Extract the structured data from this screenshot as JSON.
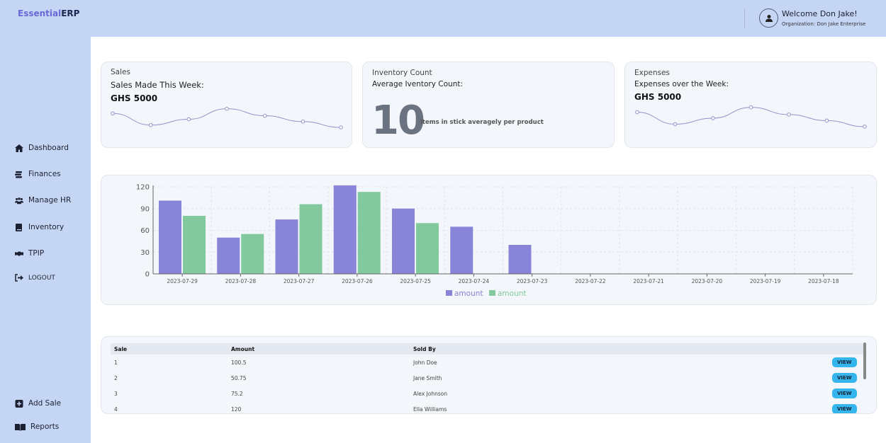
{
  "header": {
    "logo_a": "Essential",
    "logo_b": "ERP",
    "welcome": "Welcome Don Jake!",
    "organization": "Organization: Don Jake Enterprise"
  },
  "sidebar": {
    "items": [
      {
        "label": "Dashboard",
        "icon": "home-icon"
      },
      {
        "label": "Finances",
        "icon": "coins-icon"
      },
      {
        "label": "Manage HR",
        "icon": "users-icon"
      },
      {
        "label": "Inventory",
        "icon": "book-icon"
      },
      {
        "label": "TPIP",
        "icon": "handshake-icon"
      },
      {
        "label": "LOGOUT",
        "icon": "logout-icon"
      }
    ],
    "bottom": [
      {
        "label": "Add Sale",
        "icon": "plus-square-icon"
      },
      {
        "label": "Reports",
        "icon": "open-book-icon"
      }
    ]
  },
  "cards": {
    "sales": {
      "title": "Sales",
      "subtitle": "Sales Made This Week:",
      "value": "GHS 5000",
      "spark": [
        60,
        40,
        50,
        68,
        56,
        46,
        36
      ]
    },
    "inventory": {
      "title": "Inventory Count",
      "subtitle": "Average Iventory Count:",
      "value": "10",
      "label": "items in stick averagely per product"
    },
    "expenses": {
      "title": "Expenses",
      "subtitle": "Expenses over the Week:",
      "value": "GHS 5000",
      "spark": [
        60,
        40,
        50,
        68,
        56,
        46,
        36
      ]
    }
  },
  "chart_data": {
    "type": "bar",
    "categories": [
      "2023-07-29",
      "2023-07-28",
      "2023-07-27",
      "2023-07-26",
      "2023-07-25",
      "2023-07-24",
      "2023-07-23",
      "2023-07-22",
      "2023-07-21",
      "2023-07-20",
      "2023-07-19",
      "2023-07-18"
    ],
    "series": [
      {
        "name": "amount",
        "color": "#8884d8",
        "values": [
          101,
          50,
          75,
          122,
          90,
          65,
          40,
          0,
          0,
          0,
          0,
          0
        ]
      },
      {
        "name": "amount",
        "color": "#82ca9d",
        "values": [
          80,
          55,
          96,
          113,
          70,
          0,
          0,
          0,
          0,
          0,
          0,
          0
        ]
      }
    ],
    "yticks": [
      0,
      30,
      60,
      90,
      120
    ],
    "ylim": [
      0,
      122
    ],
    "grid": true,
    "legend": "bottom"
  },
  "table": {
    "headers": [
      "Sale",
      "Amount",
      "Sold By"
    ],
    "view_label": "VIEW",
    "rows": [
      [
        "1",
        "100.5",
        "John Doe"
      ],
      [
        "2",
        "50.75",
        "Jane Smith"
      ],
      [
        "3",
        "75.2",
        "Alex Johnson"
      ],
      [
        "4",
        "120",
        "Ella Williams"
      ]
    ]
  }
}
